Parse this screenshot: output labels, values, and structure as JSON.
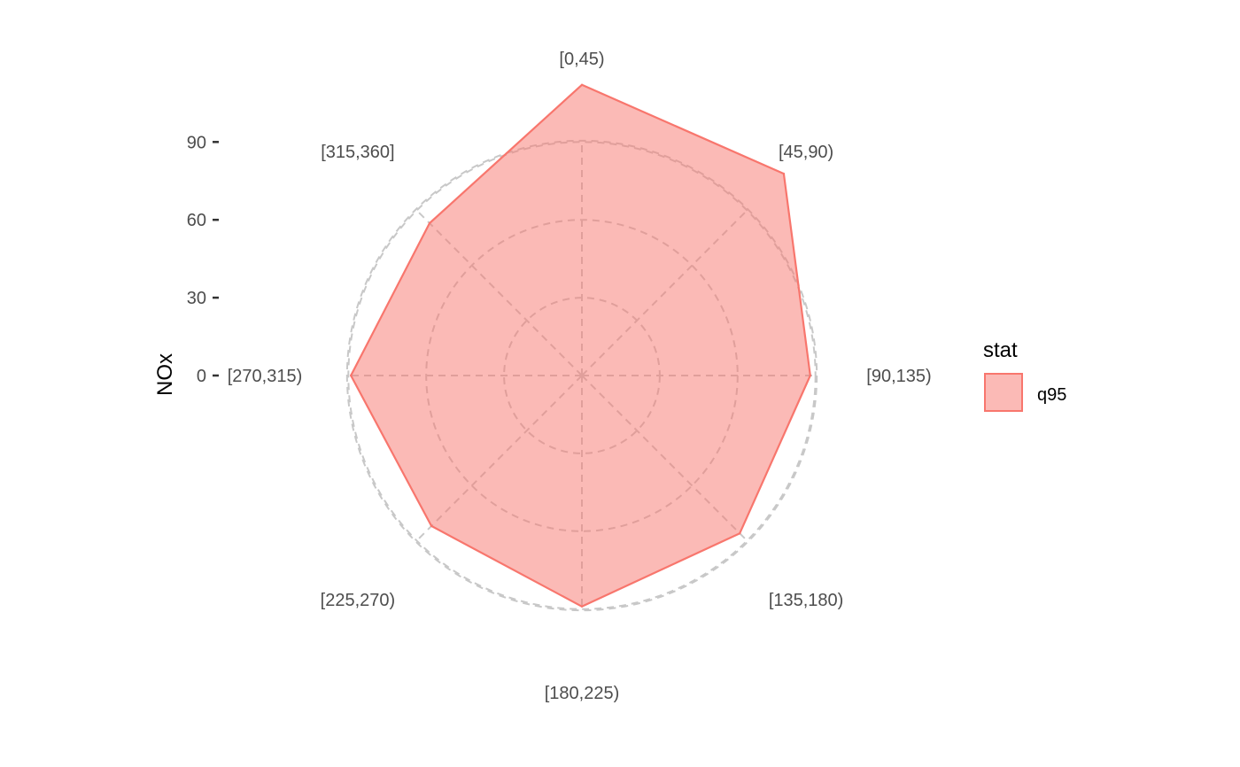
{
  "chart_data": {
    "type": "radar",
    "ylabel": "NOx",
    "categories": [
      "[0,45)",
      "[45,90)",
      "[90,135)",
      "[135,180)",
      "[180,225)",
      "[225,270)",
      "[270,315)",
      "[315,360]"
    ],
    "series": [
      {
        "name": "q95",
        "values": [
          112,
          110,
          88,
          86,
          89,
          82,
          89,
          83
        ]
      }
    ],
    "y_ticks": [
      0,
      30,
      60,
      90
    ],
    "ylim": [
      0,
      112
    ],
    "outer_ring_value": 90.5,
    "grid": true,
    "legend": {
      "title": "stat",
      "placement": "right"
    },
    "colors": {
      "fill": "#f8766d",
      "fill_opacity": 0.5,
      "stroke": "#f8766d",
      "grid": "#c8c8c8"
    }
  }
}
